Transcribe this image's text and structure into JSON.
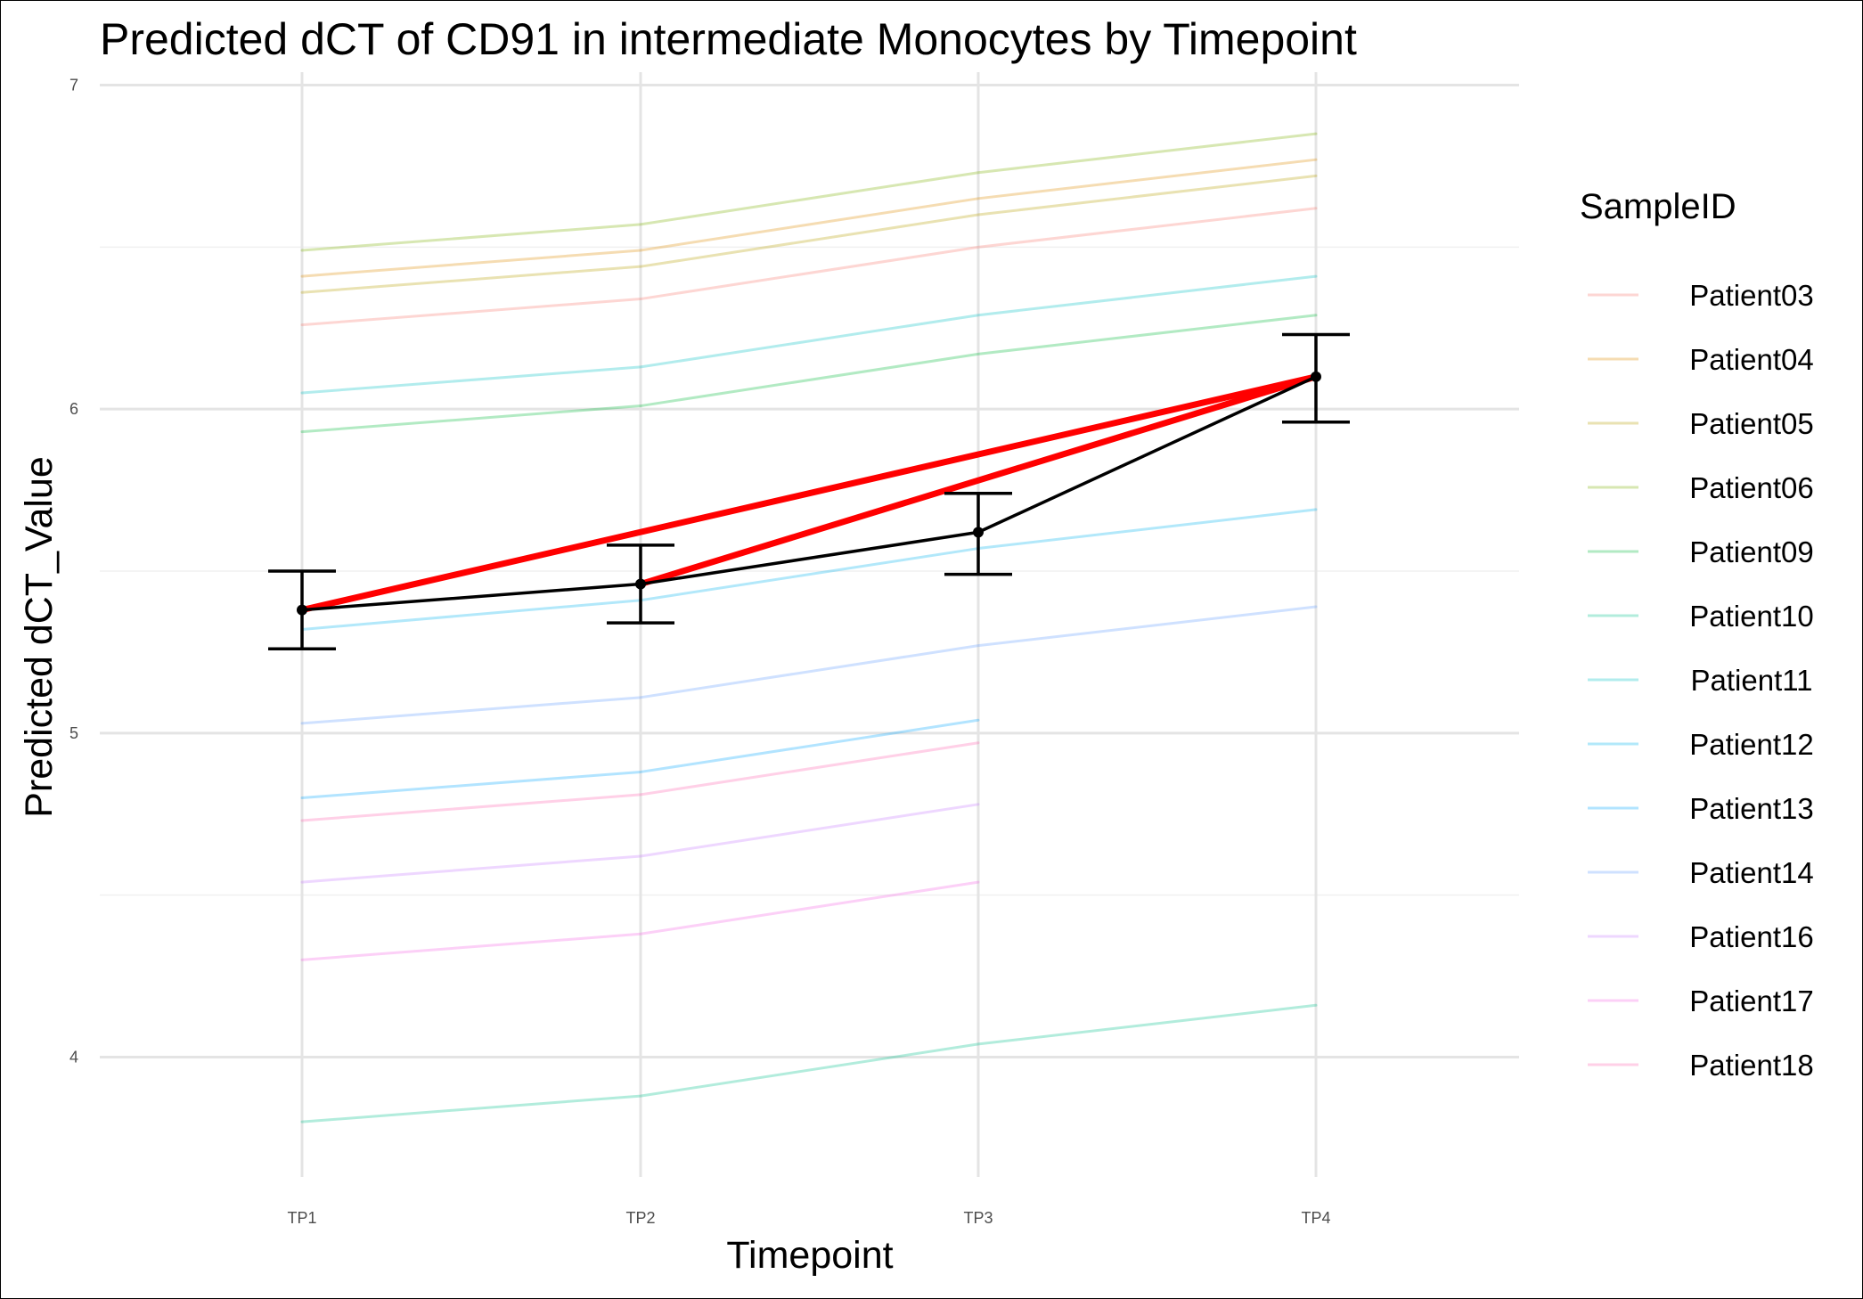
{
  "chart_data": {
    "type": "line",
    "title": "Predicted dCT of  CD91 in  intermediate  Monocytes by Timepoint",
    "xlabel": "Timepoint",
    "ylabel": "Predicted dCT_Value",
    "categories": [
      "TP1",
      "TP2",
      "TP3",
      "TP4"
    ],
    "yticks": [
      4,
      5,
      6,
      7
    ],
    "ylim": [
      3.63,
      7.04
    ],
    "grid": true,
    "legend": {
      "title": "SampleID",
      "position": "right"
    },
    "series": [
      {
        "name": "Patient03",
        "color": "#F8766D",
        "values": [
          6.26,
          6.34,
          6.5,
          6.62
        ]
      },
      {
        "name": "Patient04",
        "color": "#DE8C00",
        "values": [
          6.41,
          6.49,
          6.65,
          6.77
        ]
      },
      {
        "name": "Patient05",
        "color": "#B79F00",
        "values": [
          6.36,
          6.44,
          6.6,
          6.72
        ]
      },
      {
        "name": "Patient06",
        "color": "#7CAE00",
        "values": [
          6.49,
          6.57,
          6.73,
          6.85
        ]
      },
      {
        "name": "Patient09",
        "color": "#00BA38",
        "values": [
          5.93,
          6.01,
          6.17,
          6.29
        ]
      },
      {
        "name": "Patient10",
        "color": "#00C08B",
        "values": [
          3.8,
          3.88,
          4.04,
          4.16
        ]
      },
      {
        "name": "Patient11",
        "color": "#00BFC4",
        "values": [
          6.05,
          6.13,
          6.29,
          6.41
        ]
      },
      {
        "name": "Patient12",
        "color": "#00B4F0",
        "values": [
          5.32,
          5.41,
          5.57,
          5.69
        ]
      },
      {
        "name": "Patient13",
        "color": "#00A5FF",
        "values": [
          4.8,
          4.88,
          5.04,
          null
        ]
      },
      {
        "name": "Patient14",
        "color": "#619CFF",
        "values": [
          5.03,
          5.11,
          5.27,
          5.39
        ]
      },
      {
        "name": "Patient16",
        "color": "#C77CFF",
        "values": [
          4.54,
          4.62,
          4.78,
          null
        ]
      },
      {
        "name": "Patient17",
        "color": "#F564E3",
        "values": [
          4.3,
          4.38,
          4.54,
          null
        ]
      },
      {
        "name": "Patient18",
        "color": "#FF64B0",
        "values": [
          4.73,
          4.81,
          4.97,
          null
        ]
      }
    ],
    "mean": {
      "name": "Mean",
      "values": [
        5.38,
        5.46,
        5.62,
        6.1
      ],
      "error_low": [
        5.26,
        5.34,
        5.49,
        5.96
      ],
      "error_high": [
        5.5,
        5.58,
        5.74,
        6.23
      ],
      "color": "#000000"
    },
    "highlight": {
      "color": "#FF0000",
      "segments": [
        {
          "from": "TP1",
          "to": "TP4",
          "y_from": 5.38,
          "y_to": 6.1
        },
        {
          "from": "TP2",
          "to": "TP4",
          "y_from": 5.46,
          "y_to": 6.1
        }
      ]
    },
    "series_alpha": 0.3
  }
}
